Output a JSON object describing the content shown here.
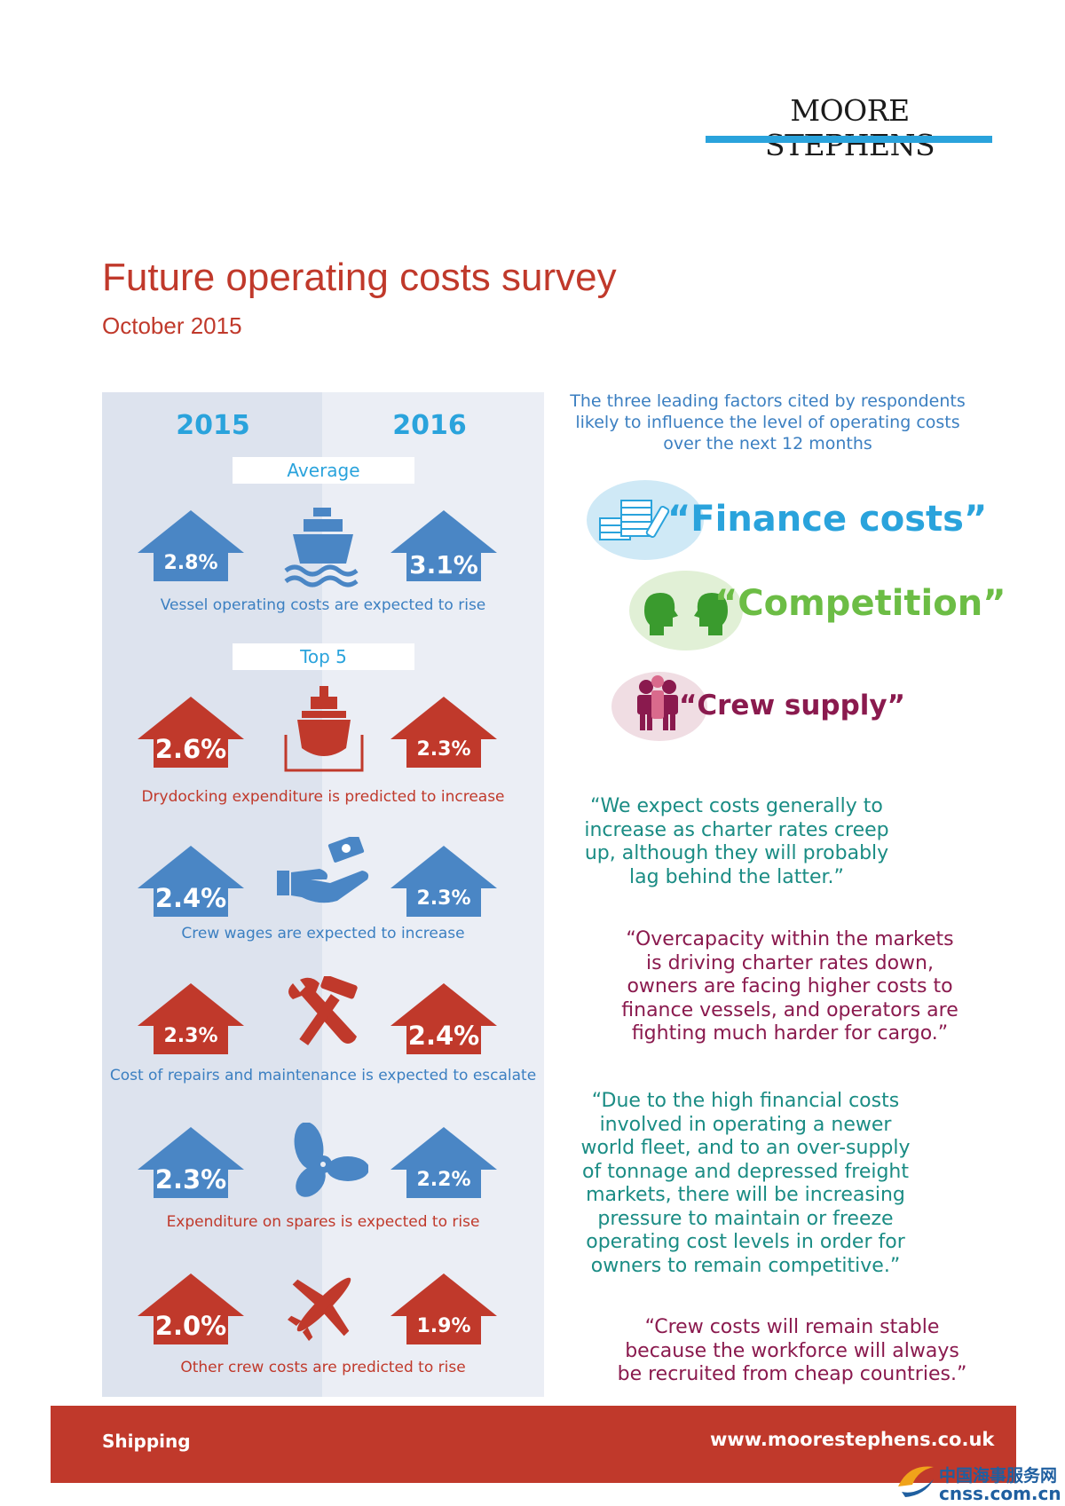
{
  "brand": {
    "name": "MOORE STEPHENS"
  },
  "header": {
    "title": "Future operating costs survey",
    "subtitle": "October 2015"
  },
  "panel": {
    "year_left": "2015",
    "year_right": "2016",
    "average_label": "Average",
    "top5_label": "Top 5"
  },
  "rows": [
    {
      "left_value": "2.8%",
      "right_value": "3.1%",
      "caption": "Vessel operating costs are expected to rise",
      "arrow_color": "blue",
      "icon": "ship-icon"
    },
    {
      "left_value": "2.6%",
      "right_value": "2.3%",
      "caption": "Drydocking expenditure is predicted to increase",
      "arrow_color": "red",
      "icon": "drydock-ship-icon"
    },
    {
      "left_value": "2.4%",
      "right_value": "2.3%",
      "caption": "Crew wages are expected to increase",
      "arrow_color": "blue",
      "icon": "hand-money-icon"
    },
    {
      "left_value": "2.3%",
      "right_value": "2.4%",
      "caption": "Cost of repairs and maintenance is expected to escalate",
      "arrow_color": "red",
      "icon": "tools-icon"
    },
    {
      "left_value": "2.3%",
      "right_value": "2.2%",
      "caption": "Expenditure on spares is expected to rise",
      "arrow_color": "blue",
      "icon": "propeller-icon"
    },
    {
      "left_value": "2.0%",
      "right_value": "1.9%",
      "caption": "Other crew costs are predicted to rise",
      "arrow_color": "red",
      "icon": "airplane-icon"
    }
  ],
  "factors": {
    "intro": "The three leading factors cited by respondents likely to influence the level of operating costs over the next 12 months",
    "items": [
      {
        "label": "“Finance costs”",
        "color": "#2aa3dc",
        "icon": "coins-icon"
      },
      {
        "label": "“Competition”",
        "color": "#6cbd45",
        "icon": "faces-icon"
      },
      {
        "label": "“Crew supply”",
        "color": "#8a1a4e",
        "icon": "people-icon"
      }
    ]
  },
  "quotes": [
    "“We expect costs generally to increase as charter rates creep up, although they will probably lag behind the latter.”",
    "“Overcapacity within the markets is driving charter rates down, owners are facing higher costs to finance vessels, and operators are fighting much harder for cargo.”",
    "“Due to the high financial costs involved in operating a newer world fleet, and to an over-supply of tonnage and depressed freight markets, there will be increasing pressure to maintain or freeze operating cost levels in order for owners to remain competitive.”",
    "“Crew costs will remain stable because the workforce will always be recruited from cheap countries.”"
  ],
  "footer": {
    "left": "Shipping",
    "right": "www.moorestephens.co.uk"
  },
  "watermark": {
    "line1": "中国海事服务网",
    "line2": "cnss.com.cn"
  },
  "colors": {
    "blue": "#4a86c5",
    "red": "#c0392b",
    "cyan": "#2aa3dc"
  }
}
